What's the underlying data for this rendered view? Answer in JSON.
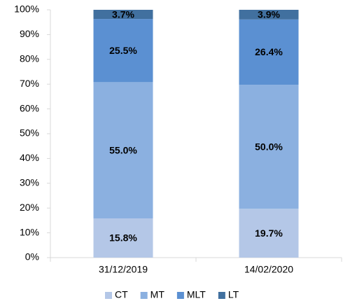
{
  "chart_data": {
    "type": "stacked_bar",
    "categories": [
      "31/12/2019",
      "14/02/2020"
    ],
    "series": [
      {
        "name": "CT",
        "color": "#b4c7e7",
        "values": [
          15.8,
          19.7
        ],
        "value_labels": [
          "15.8%",
          "19.7%"
        ]
      },
      {
        "name": "MT",
        "color": "#8bb0e0",
        "values": [
          55.0,
          50.0
        ],
        "value_labels": [
          "55.0%",
          "50.0%"
        ]
      },
      {
        "name": "MLT",
        "color": "#5b90d2",
        "values": [
          25.5,
          26.4
        ],
        "value_labels": [
          "25.5%",
          "26.4%"
        ]
      },
      {
        "name": "LT",
        "color": "#41709f",
        "values": [
          3.7,
          3.9
        ],
        "value_labels": [
          "3.7%",
          "3.9%"
        ]
      }
    ],
    "ylim": [
      0,
      100
    ],
    "yticks": [
      {
        "value": 0,
        "label": "0%"
      },
      {
        "value": 10,
        "label": "10%"
      },
      {
        "value": 20,
        "label": "20%"
      },
      {
        "value": 30,
        "label": "30%"
      },
      {
        "value": 40,
        "label": "40%"
      },
      {
        "value": 50,
        "label": "50%"
      },
      {
        "value": 60,
        "label": "60%"
      },
      {
        "value": 70,
        "label": "70%"
      },
      {
        "value": 80,
        "label": "80%"
      },
      {
        "value": 90,
        "label": "90%"
      },
      {
        "value": 100,
        "label": "100%"
      }
    ],
    "legend": "bottom"
  }
}
